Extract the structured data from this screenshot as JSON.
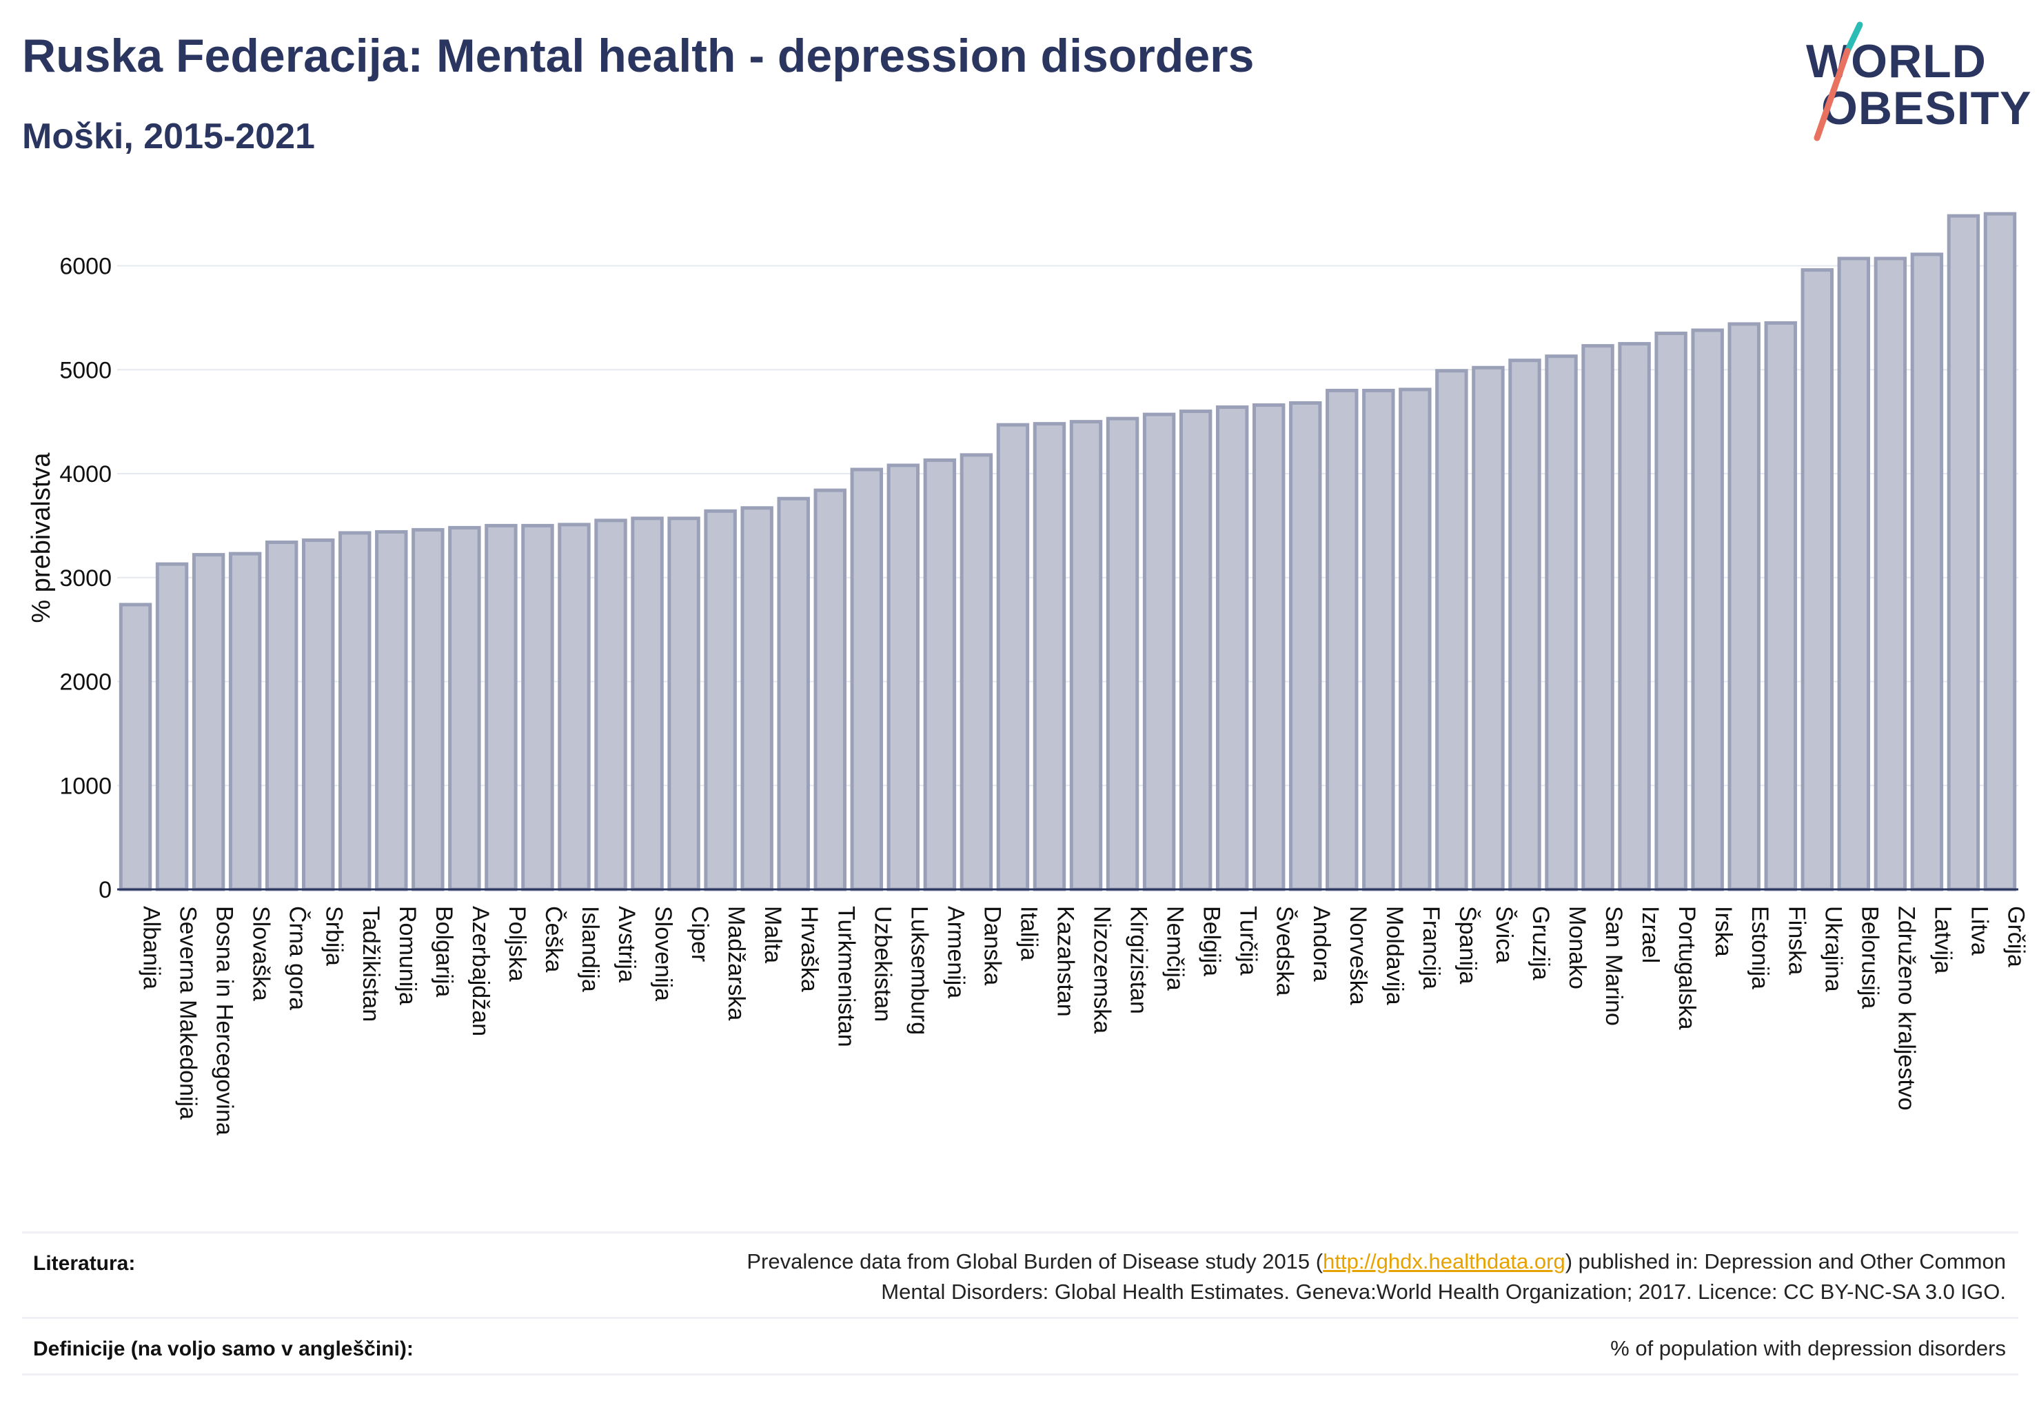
{
  "header": {
    "title": "Ruska Federacija: Mental health - depression disorders",
    "subtitle": "Moški, 2015-2021"
  },
  "logo": {
    "line1": "WORLD",
    "line2": "OBESITY"
  },
  "chart_data": {
    "type": "bar",
    "ylabel": "% prebivalstva",
    "ylim": [
      0,
      6700
    ],
    "yticks": [
      0,
      1000,
      2000,
      3000,
      4000,
      5000,
      6000
    ],
    "grid": true,
    "bar_color": "#c0c4d2",
    "bar_edge_color": "#9aa0b8",
    "categories": [
      "Albanija",
      "Severna Makedonija",
      "Bosna in Hercegovina",
      "Slovaška",
      "Črna gora",
      "Srbija",
      "Tadžikistan",
      "Romunija",
      "Bolgarija",
      "Azerbajdžan",
      "Poljska",
      "Češka",
      "Islandija",
      "Avstrija",
      "Slovenija",
      "Ciper",
      "Madžarska",
      "Malta",
      "Hrvaška",
      "Turkmenistan",
      "Uzbekistan",
      "Luksemburg",
      "Armenija",
      "Danska",
      "Italija",
      "Kazahstan",
      "Nizozemska",
      "Kirgizistan",
      "Nemčija",
      "Belgija",
      "Turčija",
      "Švedska",
      "Andora",
      "Norveška",
      "Moldavija",
      "Francija",
      "Španija",
      "Švica",
      "Gruzija",
      "Monako",
      "San Marino",
      "Izrael",
      "Portugalska",
      "Irska",
      "Estonija",
      "Finska",
      "Ukrajina",
      "Belorusija",
      "Združeno kraljestvo",
      "Latvija",
      "Litva",
      "Grčija"
    ],
    "values": [
      2740,
      3130,
      3220,
      3230,
      3340,
      3360,
      3430,
      3440,
      3460,
      3480,
      3500,
      3500,
      3510,
      3550,
      3570,
      3570,
      3640,
      3670,
      3760,
      3840,
      4040,
      4080,
      4130,
      4180,
      4470,
      4480,
      4500,
      4530,
      4570,
      4600,
      4640,
      4660,
      4680,
      4800,
      4800,
      4810,
      4990,
      5020,
      5090,
      5130,
      5230,
      5250,
      5350,
      5380,
      5440,
      5450,
      5960,
      6070,
      6070,
      6110,
      6480,
      6500
    ]
  },
  "footer": {
    "literature_label": "Literatura:",
    "literature_pre": "Prevalence data from Global Burden of Disease study 2015 (",
    "literature_link": "http://ghdx.healthdata.org",
    "literature_post": ") published in: Depression and Other Common",
    "literature_line2": "Mental Disorders: Global Health Estimates. Geneva:World Health Organization; 2017. Licence: CC BY-NC-SA 3.0 IGO.",
    "definitions_label": "Definicije (na voljo samo v angleščini):",
    "definitions_text": "% of population with depression disorders"
  }
}
